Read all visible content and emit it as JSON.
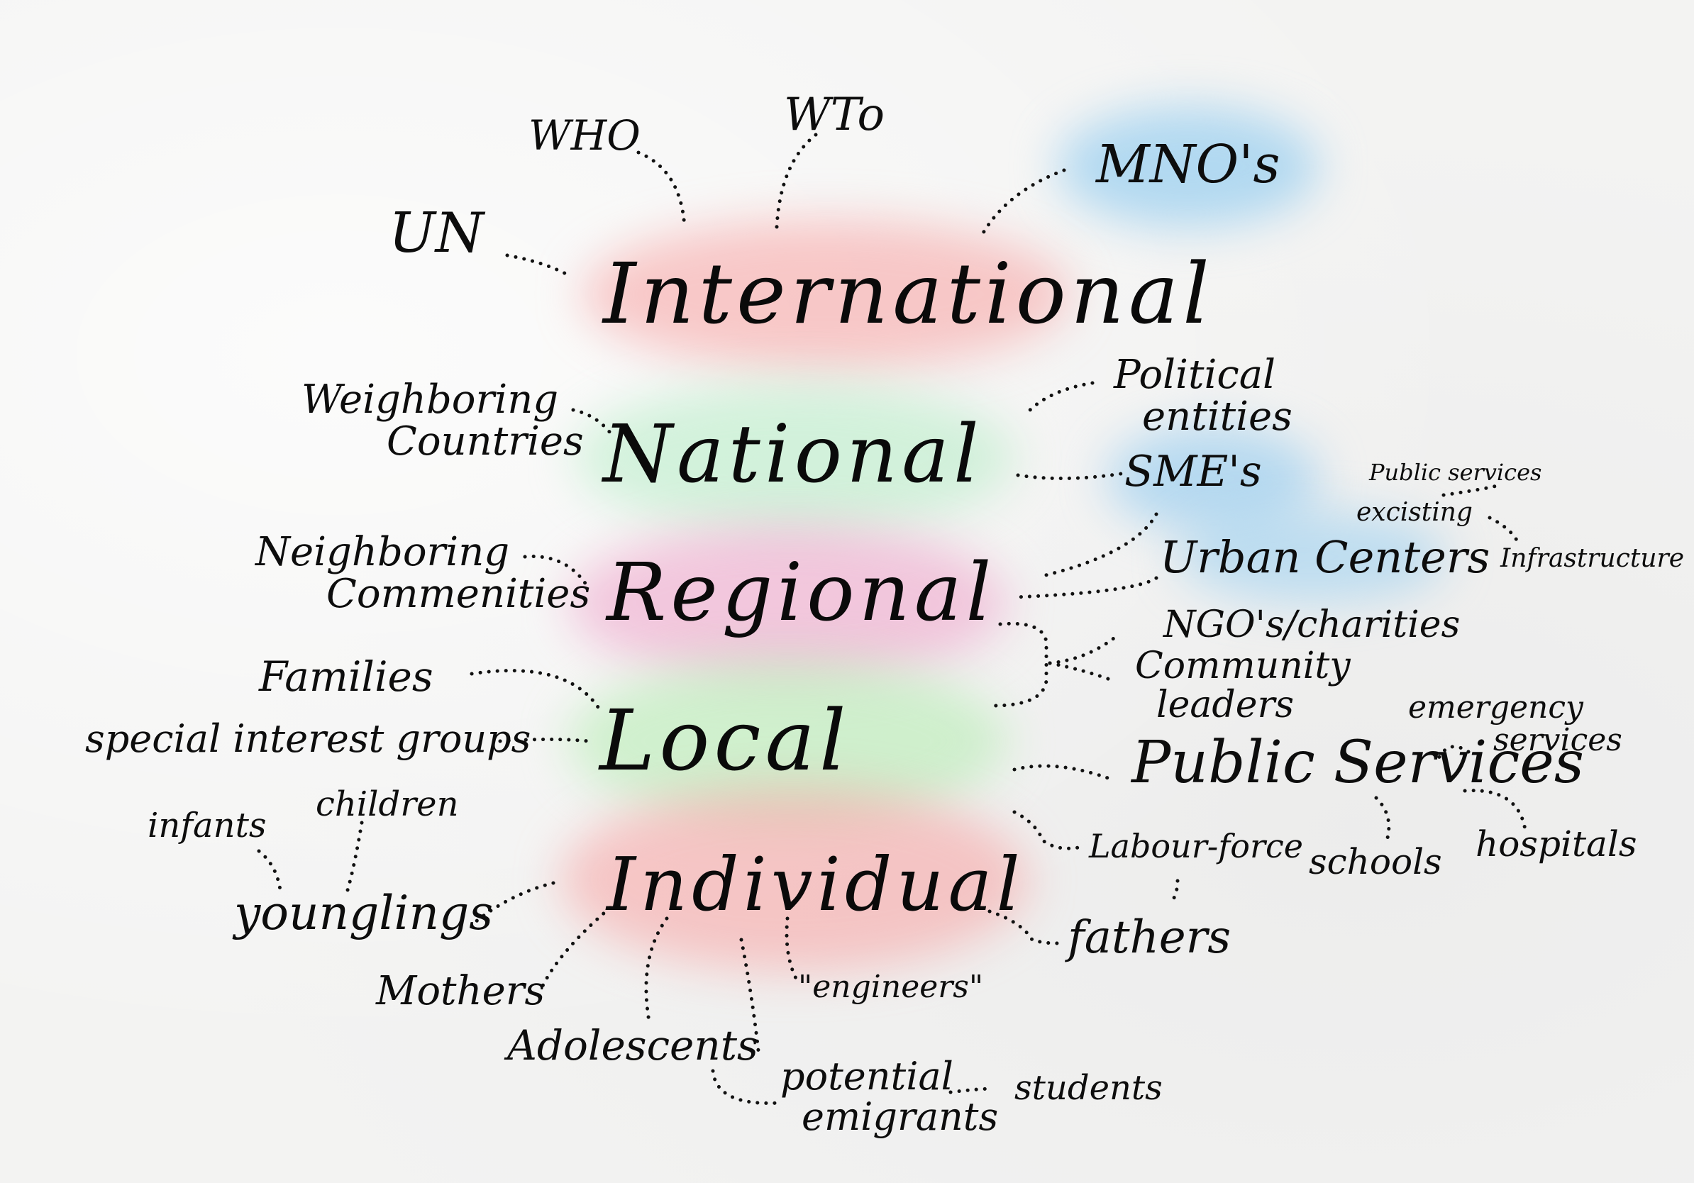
{
  "levels": {
    "international": "International",
    "national": "National",
    "regional": "Regional",
    "local": "Local",
    "individual": "Individual"
  },
  "nodes": {
    "who": "WHO",
    "wto": "WTo",
    "mnos": "MNO's",
    "un": "UN",
    "neighboring_countries": [
      "Weighboring",
      "Countries"
    ],
    "political_entities": [
      "Political",
      "entities"
    ],
    "smes": "SME's",
    "public_services_top": "Public services",
    "excisting": "excisting",
    "infrastructure": "Infrastructure",
    "urban_centers": "Urban Centers",
    "neighboring_communities": [
      "Neighboring",
      "Commenities"
    ],
    "ngos_charities": "NGO's/charities",
    "community_leaders": [
      "Community",
      "leaders"
    ],
    "families": "Families",
    "special_interest_groups": "special interest groups",
    "emergency_services": [
      "emergency",
      "services"
    ],
    "public_services": "Public Services",
    "infants": "infants",
    "children": "children",
    "labour_force": "Labour-force",
    "schools": "schools",
    "hospitals": "hospitals",
    "younglings": "younglings",
    "fathers": "fathers",
    "mothers": "Mothers",
    "engineers": "\"engineers\"",
    "adolescents": "Adolescents",
    "potential_emigrants": [
      "potential",
      "emigrants"
    ],
    "students": "students"
  },
  "colors": {
    "red_wash": "#f7a8a8",
    "green_wash": "#b8ecc2",
    "pink_wash": "#f0a7cc",
    "blue_wash": "#9fd3f3",
    "ink": "#0d0d0d"
  }
}
